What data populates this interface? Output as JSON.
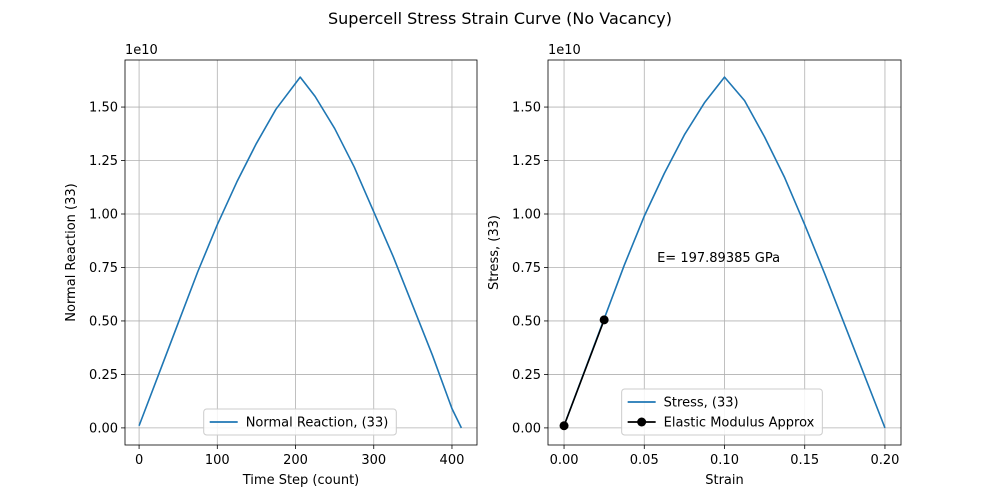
{
  "figure": {
    "suptitle": "Supercell Stress Strain Curve (No Vacancy)"
  },
  "chart_data": [
    {
      "type": "line",
      "xlabel": "Time Step (count)",
      "ylabel": "Normal Reaction (33)",
      "y_offset_label": "1e10",
      "xlim": [
        -18,
        432
      ],
      "ylim": [
        -0.08,
        1.72
      ],
      "x_ticks": [
        0,
        100,
        200,
        300,
        400
      ],
      "x_tick_labels": [
        "0",
        "100",
        "200",
        "300",
        "400"
      ],
      "y_ticks": [
        0,
        0.25,
        0.5,
        0.75,
        1.0,
        1.25,
        1.5
      ],
      "y_tick_labels": [
        "0.00",
        "0.25",
        "0.50",
        "0.75",
        "1.00",
        "1.25",
        "1.50"
      ],
      "grid": true,
      "legend_position": "lower center",
      "series": [
        {
          "name": "Normal Reaction, (33)",
          "color": "#1f77b4",
          "x": [
            0,
            25,
            50,
            75,
            100,
            125,
            150,
            175,
            206,
            225,
            250,
            275,
            300,
            325,
            350,
            375,
            400,
            412
          ],
          "y": [
            0.01,
            0.25,
            0.49,
            0.73,
            0.95,
            1.15,
            1.33,
            1.49,
            1.64,
            1.55,
            1.4,
            1.22,
            1.01,
            0.8,
            0.57,
            0.34,
            0.09,
            0.0
          ]
        }
      ]
    },
    {
      "type": "line",
      "xlabel": "Strain",
      "ylabel": "Stress, (33)",
      "y_offset_label": "1e10",
      "xlim": [
        -0.01,
        0.21
      ],
      "ylim": [
        -0.08,
        1.72
      ],
      "x_ticks": [
        0.0,
        0.05,
        0.1,
        0.15,
        0.2
      ],
      "x_tick_labels": [
        "0.00",
        "0.05",
        "0.10",
        "0.15",
        "0.20"
      ],
      "y_ticks": [
        0,
        0.25,
        0.5,
        0.75,
        1.0,
        1.25,
        1.5
      ],
      "y_tick_labels": [
        "0.00",
        "0.25",
        "0.50",
        "0.75",
        "1.00",
        "1.25",
        "1.50"
      ],
      "grid": true,
      "legend_position": "lower center",
      "annotation": {
        "text": "E= 197.89385 GPa",
        "x": 0.058,
        "y": 0.8
      },
      "series": [
        {
          "name": "Stress, (33)",
          "color": "#1f77b4",
          "marker": "none",
          "x": [
            0.0,
            0.0125,
            0.025,
            0.0375,
            0.05,
            0.0625,
            0.075,
            0.0875,
            0.1,
            0.1125,
            0.125,
            0.1375,
            0.15,
            0.1625,
            0.175,
            0.1875,
            0.2
          ],
          "y": [
            0.01,
            0.26,
            0.51,
            0.76,
            0.99,
            1.19,
            1.37,
            1.52,
            1.64,
            1.53,
            1.36,
            1.17,
            0.95,
            0.72,
            0.48,
            0.24,
            0.0
          ]
        },
        {
          "name": "Elastic Modulus Approx",
          "color": "#000000",
          "marker": "circle",
          "x": [
            0.0,
            0.025
          ],
          "y": [
            0.01,
            0.505
          ]
        }
      ]
    }
  ]
}
